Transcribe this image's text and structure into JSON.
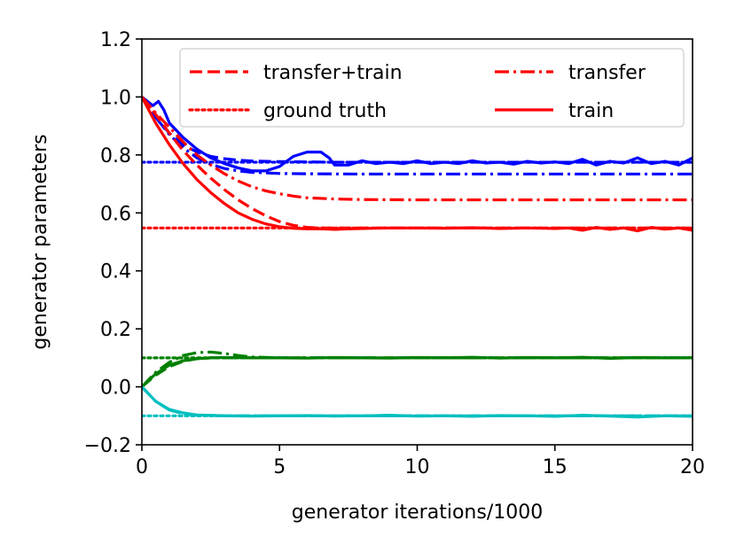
{
  "chart_data": {
    "type": "line",
    "title": "",
    "xlabel": "generator iterations/1000",
    "ylabel": "generator parameters",
    "xlim": [
      0,
      20
    ],
    "ylim": [
      -0.2,
      1.2
    ],
    "xticks": [
      0,
      5,
      10,
      15,
      20
    ],
    "xtick_labels": [
      "0",
      "5",
      "10",
      "15",
      "20"
    ],
    "yticks": [
      -0.2,
      0.0,
      0.2,
      0.4,
      0.6,
      0.8,
      1.0,
      1.2
    ],
    "ytick_labels": [
      "−0.2",
      "0.0",
      "0.2",
      "0.4",
      "0.6",
      "0.8",
      "1.0",
      "1.2"
    ],
    "grid": false,
    "legend": {
      "placement": "top-right",
      "columns": 2,
      "entries": [
        {
          "label": "transfer+train",
          "style": "dashed",
          "color": "#ff0000"
        },
        {
          "label": "transfer",
          "style": "dashdot",
          "color": "#ff0000"
        },
        {
          "label": "ground truth",
          "style": "dotted",
          "color": "#ff0000"
        },
        {
          "label": "train",
          "style": "solid",
          "color": "#ff0000"
        }
      ]
    },
    "series": [
      {
        "color": "#0000ff",
        "style": "dotted",
        "x": [
          0,
          20
        ],
        "y": [
          0.775,
          0.775
        ]
      },
      {
        "color": "#0000ff",
        "style": "dashed",
        "x": [
          0,
          0.5,
          1,
          1.5,
          2,
          2.5,
          3,
          3.5,
          4,
          5,
          6,
          7,
          8,
          10,
          12,
          15,
          20
        ],
        "y": [
          1.0,
          0.93,
          0.875,
          0.835,
          0.81,
          0.795,
          0.787,
          0.782,
          0.779,
          0.777,
          0.776,
          0.775,
          0.775,
          0.775,
          0.775,
          0.775,
          0.775
        ]
      },
      {
        "color": "#0000ff",
        "style": "dashdot",
        "x": [
          0,
          0.5,
          1,
          1.5,
          2,
          2.5,
          3,
          3.5,
          4,
          5,
          6,
          8,
          10,
          15,
          20
        ],
        "y": [
          1.0,
          0.93,
          0.87,
          0.825,
          0.79,
          0.768,
          0.753,
          0.745,
          0.74,
          0.736,
          0.735,
          0.734,
          0.734,
          0.734,
          0.734
        ]
      },
      {
        "color": "#0000ff",
        "style": "solid",
        "x": [
          0,
          0.4,
          0.6,
          0.8,
          1,
          1.5,
          2,
          2.5,
          3,
          3.5,
          4,
          4.5,
          5,
          5.5,
          6,
          6.5,
          6.8,
          7,
          7.5,
          8,
          8.5,
          9,
          9.5,
          10,
          10.5,
          11,
          11.5,
          12,
          12.5,
          13,
          13.5,
          14,
          14.5,
          15,
          15.5,
          16,
          16.5,
          17,
          17.5,
          18,
          18.5,
          19,
          19.5,
          20
        ],
        "y": [
          1.0,
          0.97,
          0.985,
          0.955,
          0.91,
          0.86,
          0.82,
          0.79,
          0.77,
          0.755,
          0.745,
          0.745,
          0.76,
          0.795,
          0.81,
          0.81,
          0.79,
          0.765,
          0.765,
          0.78,
          0.77,
          0.775,
          0.77,
          0.78,
          0.77,
          0.775,
          0.77,
          0.78,
          0.772,
          0.775,
          0.768,
          0.778,
          0.772,
          0.776,
          0.77,
          0.785,
          0.765,
          0.778,
          0.772,
          0.79,
          0.77,
          0.778,
          0.765,
          0.79
        ]
      },
      {
        "color": "#ff0000",
        "style": "dotted",
        "x": [
          0,
          20
        ],
        "y": [
          0.548,
          0.548
        ]
      },
      {
        "color": "#ff0000",
        "style": "dashed",
        "x": [
          0,
          0.5,
          1,
          1.5,
          2,
          2.5,
          3,
          3.5,
          4,
          4.5,
          5,
          5.5,
          6,
          6.5,
          7,
          8,
          10,
          15,
          20
        ],
        "y": [
          1.0,
          0.94,
          0.875,
          0.815,
          0.765,
          0.72,
          0.68,
          0.645,
          0.615,
          0.59,
          0.57,
          0.557,
          0.55,
          0.548,
          0.548,
          0.548,
          0.548,
          0.548,
          0.548
        ]
      },
      {
        "color": "#ff0000",
        "style": "dashdot",
        "x": [
          0,
          0.5,
          1,
          1.5,
          2,
          2.5,
          3,
          3.5,
          4,
          4.5,
          5,
          5.5,
          6,
          7,
          8,
          10,
          15,
          20
        ],
        "y": [
          1.0,
          0.945,
          0.895,
          0.845,
          0.8,
          0.765,
          0.735,
          0.71,
          0.69,
          0.676,
          0.666,
          0.658,
          0.652,
          0.648,
          0.646,
          0.645,
          0.645,
          0.645
        ]
      },
      {
        "color": "#ff0000",
        "style": "solid",
        "x": [
          0,
          0.5,
          1,
          1.5,
          2,
          2.5,
          3,
          3.5,
          4,
          4.5,
          5,
          5.5,
          6,
          6.5,
          7,
          7.5,
          8,
          9,
          10,
          11,
          12,
          13,
          14,
          15,
          15.5,
          16,
          16.5,
          17,
          17.5,
          18,
          18.5,
          19,
          19.5,
          20
        ],
        "y": [
          1.0,
          0.91,
          0.835,
          0.77,
          0.715,
          0.67,
          0.632,
          0.6,
          0.578,
          0.562,
          0.552,
          0.547,
          0.545,
          0.545,
          0.543,
          0.545,
          0.546,
          0.548,
          0.548,
          0.547,
          0.549,
          0.546,
          0.548,
          0.546,
          0.548,
          0.54,
          0.55,
          0.543,
          0.548,
          0.538,
          0.55,
          0.544,
          0.548,
          0.54
        ]
      },
      {
        "color": "#008000",
        "style": "dotted",
        "x": [
          0,
          20
        ],
        "y": [
          0.1,
          0.1
        ]
      },
      {
        "color": "#008000",
        "style": "dashed",
        "x": [
          0,
          0.5,
          1,
          1.5,
          2,
          2.5,
          3,
          4,
          5,
          20
        ],
        "y": [
          0.0,
          0.04,
          0.07,
          0.088,
          0.097,
          0.1,
          0.1,
          0.1,
          0.1,
          0.1
        ]
      },
      {
        "color": "#008000",
        "style": "dashdot",
        "x": [
          0,
          0.5,
          1,
          1.5,
          2,
          2.5,
          3,
          3.5,
          4,
          5,
          20
        ],
        "y": [
          0.0,
          0.05,
          0.085,
          0.108,
          0.118,
          0.12,
          0.115,
          0.108,
          0.103,
          0.1,
          0.1
        ]
      },
      {
        "color": "#008000",
        "style": "solid",
        "x": [
          0,
          0.5,
          1,
          1.5,
          2,
          2.5,
          3,
          4,
          5,
          6,
          7,
          8,
          9,
          10,
          11,
          12,
          13,
          14,
          15,
          16,
          17,
          18,
          19,
          20
        ],
        "y": [
          0.0,
          0.045,
          0.075,
          0.09,
          0.097,
          0.1,
          0.101,
          0.1,
          0.1,
          0.099,
          0.101,
          0.1,
          0.099,
          0.101,
          0.1,
          0.102,
          0.099,
          0.101,
          0.1,
          0.102,
          0.098,
          0.101,
          0.1,
          0.1
        ]
      },
      {
        "color": "#00bfbf",
        "style": "dotted",
        "x": [
          0,
          20
        ],
        "y": [
          -0.1,
          -0.1
        ]
      },
      {
        "color": "#00bfbf",
        "style": "dashed",
        "x": [
          0,
          0.5,
          1,
          1.5,
          2,
          3,
          4,
          20
        ],
        "y": [
          0.0,
          -0.05,
          -0.08,
          -0.093,
          -0.098,
          -0.1,
          -0.1,
          -0.1
        ]
      },
      {
        "color": "#00bfbf",
        "style": "dashdot",
        "x": [
          0,
          0.5,
          1,
          1.5,
          2,
          3,
          4,
          20
        ],
        "y": [
          0.0,
          -0.05,
          -0.08,
          -0.092,
          -0.097,
          -0.1,
          -0.1,
          -0.1
        ]
      },
      {
        "color": "#00bfbf",
        "style": "solid",
        "x": [
          0,
          0.5,
          1,
          1.5,
          2,
          3,
          4,
          5,
          6,
          7,
          8,
          9,
          10,
          11,
          12,
          13,
          14,
          15,
          16,
          17,
          18,
          19,
          20
        ],
        "y": [
          0.0,
          -0.05,
          -0.078,
          -0.09,
          -0.097,
          -0.1,
          -0.101,
          -0.1,
          -0.099,
          -0.101,
          -0.1,
          -0.098,
          -0.101,
          -0.1,
          -0.102,
          -0.099,
          -0.1,
          -0.102,
          -0.098,
          -0.101,
          -0.104,
          -0.1,
          -0.102
        ]
      }
    ]
  }
}
